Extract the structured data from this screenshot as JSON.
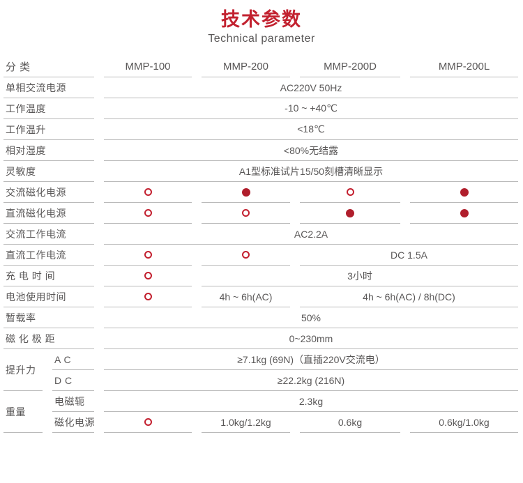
{
  "header": {
    "title": "技术参数",
    "subtitle": "Technical parameter"
  },
  "colors": {
    "accent_red": "#C2212F",
    "dot_filled": "#B01E2C",
    "dot_open_border": "#C3202F",
    "text_gray": "#595757",
    "line_gray": "#BABABA"
  },
  "table": {
    "columns": [
      "分 类",
      "MMP-100",
      "MMP-200",
      "MMP-200D",
      "MMP-200L"
    ],
    "rows": [
      {
        "label": "单相交流电源",
        "cells": [
          {
            "span": "s25",
            "text": "AC220V 50Hz"
          }
        ]
      },
      {
        "label": "工作温度",
        "cells": [
          {
            "span": "s25",
            "text": "-10 ~ +40℃"
          }
        ]
      },
      {
        "label": "工作温升",
        "cells": [
          {
            "span": "s25",
            "text": "<18℃"
          }
        ]
      },
      {
        "label": "相对湿度",
        "cells": [
          {
            "span": "s25",
            "text": "<80%无结露"
          }
        ]
      },
      {
        "label": "灵敏度",
        "cells": [
          {
            "span": "s25",
            "text": "A1型标准试片15/50刻槽清晰显示"
          }
        ]
      },
      {
        "label": "交流磁化电源",
        "cells": [
          {
            "span": "c2",
            "circle": "open"
          },
          {
            "span": "c3",
            "circle": "filled"
          },
          {
            "span": "c4",
            "circle": "open"
          },
          {
            "span": "c5",
            "circle": "filled"
          }
        ]
      },
      {
        "label": "直流磁化电源",
        "cells": [
          {
            "span": "c2",
            "circle": "open"
          },
          {
            "span": "c3",
            "circle": "open"
          },
          {
            "span": "c4",
            "circle": "filled"
          },
          {
            "span": "c5",
            "circle": "filled"
          }
        ]
      },
      {
        "label": "交流工作电流",
        "cells": [
          {
            "span": "s25",
            "text": "AC2.2A"
          }
        ]
      },
      {
        "label": "直流工作电流",
        "cells": [
          {
            "span": "c2",
            "circle": "open"
          },
          {
            "span": "c3",
            "circle": "open"
          },
          {
            "span": "s45",
            "text": "DC 1.5A"
          }
        ]
      },
      {
        "label": "充 电 时 间",
        "cells": [
          {
            "span": "c2",
            "circle": "open"
          },
          {
            "span": "s35",
            "text": "3小时"
          }
        ]
      },
      {
        "label": "电池使用时间",
        "cells": [
          {
            "span": "c2",
            "circle": "open"
          },
          {
            "span": "c3",
            "text": "4h ~ 6h(AC)"
          },
          {
            "span": "s45",
            "text": "4h ~ 6h(AC)  /  8h(DC)"
          }
        ]
      },
      {
        "label": "暂载率",
        "cells": [
          {
            "span": "s25",
            "text": "50%"
          }
        ]
      },
      {
        "label": "磁 化 极 距",
        "cells": [
          {
            "span": "s25",
            "text": "0~230mm"
          }
        ]
      },
      {
        "group": "提升力",
        "subrows": [
          {
            "label": "A C",
            "cells": [
              {
                "span": "s25",
                "text": "≥7.1kg (69N)（直插220V交流电）"
              }
            ]
          },
          {
            "label": "D C",
            "cells": [
              {
                "span": "s25",
                "text": "≥22.2kg (216N)"
              }
            ]
          }
        ]
      },
      {
        "group": "重量",
        "subrows": [
          {
            "label": "电磁轭",
            "cells": [
              {
                "span": "s25",
                "text": "2.3kg"
              }
            ]
          },
          {
            "label": "磁化电源",
            "cells": [
              {
                "span": "c2",
                "circle": "open"
              },
              {
                "span": "c3",
                "text": "1.0kg/1.2kg"
              },
              {
                "span": "c4",
                "text": "0.6kg"
              },
              {
                "span": "c5",
                "text": "0.6kg/1.0kg"
              }
            ]
          }
        ]
      }
    ]
  }
}
